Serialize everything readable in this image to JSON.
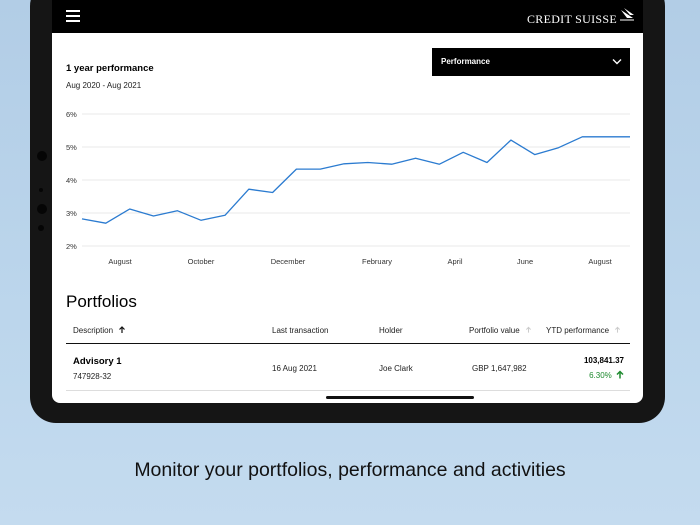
{
  "header": {
    "menu_icon": "hamburger-menu-icon",
    "brand": "CREDIT SUISSE",
    "brand_icon": "sails-logo-icon"
  },
  "performance": {
    "title": "1 year performance",
    "date_range": "Aug 2020 - Aug 2021",
    "dropdown": {
      "selected": "Performance",
      "icon": "chevron-down-icon"
    }
  },
  "chart_data": {
    "type": "line",
    "title": "1 year performance",
    "subtitle": "Aug 2020 - Aug 2021",
    "y_ticks": [
      "6%",
      "5%",
      "4%",
      "3%",
      "2%"
    ],
    "ylim": [
      2,
      6
    ],
    "x_tick_labels": [
      "August",
      "October",
      "December",
      "February",
      "April",
      "June",
      "August"
    ],
    "grid": true,
    "color": "#2b7bd0",
    "series": [
      {
        "values": [
          2.82,
          2.69,
          3.12,
          2.91,
          3.07,
          2.78,
          2.93,
          3.72,
          3.62,
          4.33,
          4.33,
          4.49,
          4.53,
          4.48,
          4.66,
          4.48,
          4.84,
          4.53,
          5.21,
          4.77,
          4.98,
          5.31,
          5.31,
          5.31
        ]
      }
    ]
  },
  "portfolios": {
    "heading": "Portfolios",
    "columns": {
      "description": "Description",
      "last_transaction": "Last transaction",
      "holder": "Holder",
      "portfolio_value": "Portfolio value",
      "ytd_performance": "YTD performance"
    },
    "rows": [
      {
        "name": "Advisory 1",
        "number": "747928-32",
        "last_transaction": "16 Aug 2021",
        "holder": "Joe Clark",
        "value": "GBP 1,647,982",
        "ytd_amount": "103,841.37",
        "ytd_percent": "6.30%"
      }
    ]
  },
  "caption": "Monitor your portfolios, performance and activities"
}
